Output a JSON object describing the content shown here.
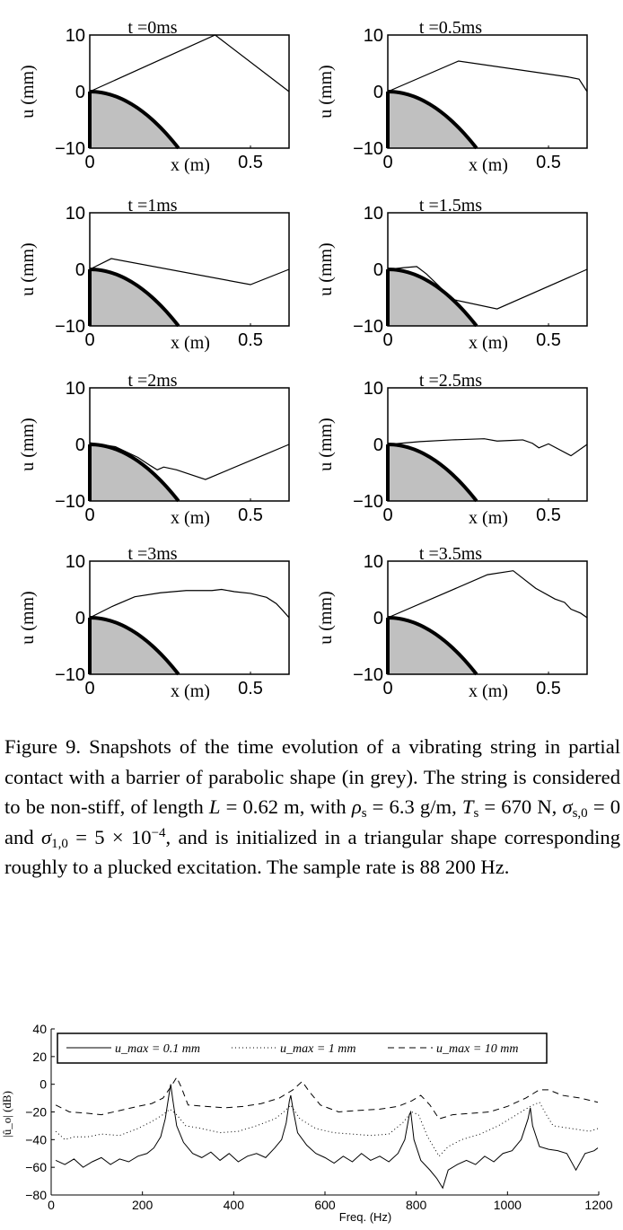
{
  "snapshots": {
    "x_range": [
      0,
      0.62
    ],
    "y_range": [
      -10,
      10
    ],
    "x_ticks": [
      "0",
      "0.5"
    ],
    "x_tick_values": [
      0,
      0.5
    ],
    "y_ticks": [
      "10",
      "0",
      "−10"
    ],
    "y_tick_values": [
      10,
      0,
      -10
    ],
    "xlabel": "x (m)",
    "ylabel": "u (mm)",
    "barrier_color": "#c0c0c0",
    "barrier": {
      "shape": "parabola",
      "reaches_minus10_at_x": 0.276
    },
    "panels": [
      {
        "title": "t =0ms",
        "string": [
          [
            0,
            0
          ],
          [
            0.39,
            10
          ],
          [
            0.62,
            0
          ]
        ]
      },
      {
        "title": "t =0.5ms",
        "string": [
          [
            0,
            0
          ],
          [
            0.22,
            5.4
          ],
          [
            0.56,
            2.6
          ],
          [
            0.595,
            2.2
          ],
          [
            0.62,
            0
          ]
        ]
      },
      {
        "title": "t =1ms",
        "string": [
          [
            0,
            0
          ],
          [
            0.067,
            1.9
          ],
          [
            0.5,
            -2.7
          ],
          [
            0.62,
            0
          ]
        ]
      },
      {
        "title": "t =1.5ms",
        "string": [
          [
            0,
            0
          ],
          [
            0.05,
            0.3
          ],
          [
            0.09,
            0.5
          ],
          [
            0.12,
            -0.8
          ],
          [
            0.16,
            -3
          ],
          [
            0.2,
            -5.3
          ],
          [
            0.34,
            -7
          ],
          [
            0.62,
            0
          ]
        ]
      },
      {
        "title": "t =2ms",
        "string": [
          [
            0,
            0.3
          ],
          [
            0.08,
            -0.4
          ],
          [
            0.15,
            -2.3
          ],
          [
            0.19,
            -3.8
          ],
          [
            0.21,
            -4.5
          ],
          [
            0.23,
            -4
          ],
          [
            0.27,
            -4.5
          ],
          [
            0.36,
            -6.2
          ],
          [
            0.62,
            0
          ]
        ]
      },
      {
        "title": "t =2.5ms",
        "string": [
          [
            0,
            0
          ],
          [
            0.1,
            0.5
          ],
          [
            0.2,
            0.8
          ],
          [
            0.3,
            1
          ],
          [
            0.34,
            0.6
          ],
          [
            0.38,
            0.7
          ],
          [
            0.42,
            0.8
          ],
          [
            0.45,
            0.2
          ],
          [
            0.47,
            -0.6
          ],
          [
            0.5,
            0.1
          ],
          [
            0.57,
            -2
          ],
          [
            0.62,
            0
          ]
        ]
      },
      {
        "title": "t =3ms",
        "string": [
          [
            0,
            0
          ],
          [
            0.07,
            2
          ],
          [
            0.14,
            3.7
          ],
          [
            0.22,
            4.4
          ],
          [
            0.3,
            4.8
          ],
          [
            0.38,
            4.8
          ],
          [
            0.41,
            5
          ],
          [
            0.45,
            4.6
          ],
          [
            0.5,
            4.3
          ],
          [
            0.55,
            3.6
          ],
          [
            0.58,
            2.5
          ],
          [
            0.6,
            1.3
          ],
          [
            0.62,
            0
          ]
        ]
      },
      {
        "title": "t =3.5ms",
        "string": [
          [
            0,
            0
          ],
          [
            0.31,
            7.6
          ],
          [
            0.39,
            8.3
          ],
          [
            0.46,
            5.2
          ],
          [
            0.52,
            3.3
          ],
          [
            0.55,
            2.7
          ],
          [
            0.57,
            1.5
          ],
          [
            0.6,
            0.8
          ],
          [
            0.62,
            0
          ]
        ]
      }
    ]
  },
  "caption": [
    {
      "t": "Figure 9. Snapshots of the time evolution of a vibrating string in partial contact with a barrier of parabolic shape (in grey). The string is considered to be non-stiff, of length "
    },
    {
      "t": "L",
      "i": true
    },
    {
      "t": " = 0.62 m, with "
    },
    {
      "t": "ρ",
      "i": true
    },
    {
      "t": "s",
      "sub": true
    },
    {
      "t": " = 6.3 g/m, "
    },
    {
      "t": "T",
      "i": true
    },
    {
      "t": "s",
      "sub": true
    },
    {
      "t": " = 670 N, "
    },
    {
      "t": "σ",
      "i": true
    },
    {
      "t": "s,0",
      "sub": true
    },
    {
      "t": " = 0 and "
    },
    {
      "t": "σ",
      "i": true
    },
    {
      "t": "1,0",
      "sub": true
    },
    {
      "t": " = 5 × 10"
    },
    {
      "t": "−4",
      "sup": true
    },
    {
      "t": ", and is initialized in a triangular shape corresponding roughly to a plucked excitation. The sample rate is 88 200 Hz."
    }
  ],
  "chart_data": {
    "type": "line",
    "xlabel": "Freq. (Hz)",
    "ylabel": "|û_o| (dB)",
    "xlim": [
      0,
      1200
    ],
    "ylim": [
      -80,
      40
    ],
    "x_ticks": [
      0,
      200,
      400,
      600,
      800,
      1000,
      1200
    ],
    "y_ticks": [
      -80,
      -60,
      -40,
      -20,
      0,
      20,
      40
    ],
    "grid": false,
    "legend_placement": "top",
    "series": [
      {
        "name": "u_max = 0.1 mm",
        "style": "solid",
        "points": [
          [
            10,
            -55
          ],
          [
            30,
            -58
          ],
          [
            50,
            -54
          ],
          [
            70,
            -60
          ],
          [
            90,
            -56
          ],
          [
            110,
            -53
          ],
          [
            130,
            -58
          ],
          [
            150,
            -54
          ],
          [
            170,
            -56
          ],
          [
            190,
            -52
          ],
          [
            210,
            -50
          ],
          [
            225,
            -46
          ],
          [
            240,
            -38
          ],
          [
            250,
            -25
          ],
          [
            258,
            -8
          ],
          [
            262,
            0
          ],
          [
            266,
            -10
          ],
          [
            275,
            -30
          ],
          [
            290,
            -42
          ],
          [
            310,
            -50
          ],
          [
            330,
            -53
          ],
          [
            350,
            -49
          ],
          [
            370,
            -55
          ],
          [
            390,
            -50
          ],
          [
            410,
            -56
          ],
          [
            430,
            -52
          ],
          [
            450,
            -50
          ],
          [
            470,
            -53
          ],
          [
            490,
            -46
          ],
          [
            505,
            -40
          ],
          [
            515,
            -28
          ],
          [
            522,
            -12
          ],
          [
            525,
            -8
          ],
          [
            530,
            -18
          ],
          [
            540,
            -35
          ],
          [
            560,
            -44
          ],
          [
            580,
            -50
          ],
          [
            600,
            -53
          ],
          [
            620,
            -57
          ],
          [
            640,
            -52
          ],
          [
            660,
            -56
          ],
          [
            680,
            -50
          ],
          [
            700,
            -55
          ],
          [
            720,
            -52
          ],
          [
            740,
            -56
          ],
          [
            760,
            -50
          ],
          [
            775,
            -40
          ],
          [
            785,
            -22
          ],
          [
            788,
            -20
          ],
          [
            795,
            -40
          ],
          [
            810,
            -55
          ],
          [
            830,
            -62
          ],
          [
            845,
            -68
          ],
          [
            858,
            -75
          ],
          [
            870,
            -62
          ],
          [
            890,
            -58
          ],
          [
            910,
            -55
          ],
          [
            930,
            -58
          ],
          [
            950,
            -52
          ],
          [
            970,
            -56
          ],
          [
            990,
            -50
          ],
          [
            1010,
            -48
          ],
          [
            1030,
            -40
          ],
          [
            1045,
            -25
          ],
          [
            1050,
            -17
          ],
          [
            1055,
            -30
          ],
          [
            1070,
            -45
          ],
          [
            1090,
            -47
          ],
          [
            1110,
            -48
          ],
          [
            1130,
            -50
          ],
          [
            1150,
            -62
          ],
          [
            1170,
            -50
          ],
          [
            1190,
            -48
          ],
          [
            1198,
            -46
          ]
        ]
      },
      {
        "name": "u_max = 1 mm",
        "style": "dotted",
        "points": [
          [
            10,
            -34
          ],
          [
            30,
            -40
          ],
          [
            50,
            -38
          ],
          [
            80,
            -38
          ],
          [
            110,
            -36
          ],
          [
            150,
            -37
          ],
          [
            190,
            -32
          ],
          [
            220,
            -27
          ],
          [
            245,
            -22
          ],
          [
            260,
            -18
          ],
          [
            275,
            -22
          ],
          [
            295,
            -30
          ],
          [
            330,
            -32
          ],
          [
            370,
            -35
          ],
          [
            410,
            -34
          ],
          [
            450,
            -30
          ],
          [
            490,
            -25
          ],
          [
            510,
            -20
          ],
          [
            525,
            -15
          ],
          [
            545,
            -25
          ],
          [
            580,
            -32
          ],
          [
            620,
            -35
          ],
          [
            660,
            -36
          ],
          [
            700,
            -37
          ],
          [
            740,
            -36
          ],
          [
            770,
            -28
          ],
          [
            790,
            -20
          ],
          [
            805,
            -22
          ],
          [
            825,
            -38
          ],
          [
            850,
            -52
          ],
          [
            870,
            -45
          ],
          [
            900,
            -40
          ],
          [
            940,
            -36
          ],
          [
            980,
            -30
          ],
          [
            1020,
            -22
          ],
          [
            1050,
            -16
          ],
          [
            1070,
            -13
          ],
          [
            1085,
            -22
          ],
          [
            1100,
            -30
          ],
          [
            1140,
            -32
          ],
          [
            1180,
            -34
          ],
          [
            1198,
            -32
          ]
        ]
      },
      {
        "name": "u_max = 10 mm",
        "style": "dashed",
        "points": [
          [
            10,
            -15
          ],
          [
            40,
            -20
          ],
          [
            80,
            -21
          ],
          [
            110,
            -22
          ],
          [
            150,
            -19
          ],
          [
            190,
            -16
          ],
          [
            220,
            -14
          ],
          [
            245,
            -10
          ],
          [
            262,
            -2
          ],
          [
            275,
            5
          ],
          [
            285,
            -2
          ],
          [
            300,
            -15
          ],
          [
            340,
            -16
          ],
          [
            380,
            -17
          ],
          [
            420,
            -16
          ],
          [
            460,
            -14
          ],
          [
            500,
            -10
          ],
          [
            530,
            -4
          ],
          [
            550,
            2
          ],
          [
            565,
            -5
          ],
          [
            590,
            -15
          ],
          [
            630,
            -20
          ],
          [
            670,
            -19
          ],
          [
            720,
            -18
          ],
          [
            760,
            -16
          ],
          [
            790,
            -12
          ],
          [
            810,
            -8
          ],
          [
            830,
            -15
          ],
          [
            850,
            -25
          ],
          [
            880,
            -22
          ],
          [
            920,
            -21
          ],
          [
            960,
            -20
          ],
          [
            1000,
            -16
          ],
          [
            1040,
            -10
          ],
          [
            1070,
            -4
          ],
          [
            1090,
            -4
          ],
          [
            1120,
            -8
          ],
          [
            1160,
            -10
          ],
          [
            1198,
            -13
          ]
        ]
      }
    ]
  }
}
